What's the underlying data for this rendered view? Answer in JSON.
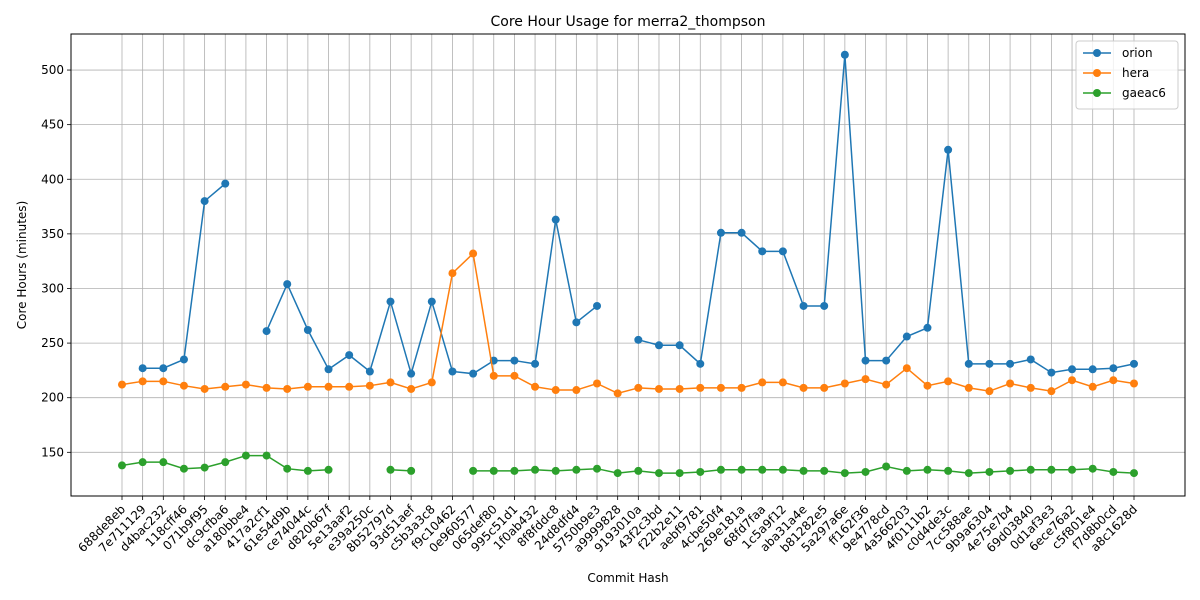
{
  "chart_data": {
    "type": "line",
    "title": "Core Hour Usage for merra2_thompson",
    "xlabel": "Commit Hash",
    "ylabel": "Core Hours (minutes)",
    "ylim": [
      110,
      533
    ],
    "yticks": [
      150,
      200,
      250,
      300,
      350,
      400,
      450,
      500
    ],
    "grid": true,
    "legend_position": "top-right",
    "categories": [
      "688de8eb",
      "7e711129",
      "d4bac232",
      "118cff46",
      "071b9f95",
      "dc9cfba6",
      "a180bbe4",
      "417a2cf1",
      "61e54d9b",
      "ce74044c",
      "d820b67f",
      "5e13aaf2",
      "e39a250c",
      "8b52797d",
      "93d51aef",
      "c5b3a3c8",
      "f9c10462",
      "0e960577",
      "065def80",
      "995c51d1",
      "1f0ab432",
      "8f8fddc8",
      "24d8dfd4",
      "5750b9e3",
      "a9999828",
      "9193010a",
      "43f2c3bd",
      "f22b2e11",
      "aebf9781",
      "4cbe50f4",
      "269e181a",
      "68fd7faa",
      "1c5a9f12",
      "aba31a4e",
      "b81282e5",
      "5a297a6e",
      "ff162f36",
      "9e4778cd",
      "4a566203",
      "4f0111b2",
      "c0d4de3c",
      "7cc588ae",
      "9b9a6304",
      "4e75e7b4",
      "69d03840",
      "0d1af3e3",
      "6ece76a2",
      "c5f801e4",
      "f7d8b0cd",
      "a8c1628d"
    ],
    "series": [
      {
        "name": "orion",
        "color": "#1f77b4",
        "values": [
          null,
          227,
          227,
          235,
          380,
          396,
          null,
          261,
          304,
          262,
          226,
          239,
          224,
          288,
          222,
          288,
          224,
          222,
          234,
          234,
          231,
          363,
          269,
          284,
          null,
          253,
          248,
          248,
          231,
          351,
          351,
          334,
          334,
          284,
          284,
          514,
          234,
          234,
          256,
          264,
          427,
          231,
          231,
          231,
          235,
          223,
          226,
          226,
          227,
          231
        ]
      },
      {
        "name": "hera",
        "color": "#ff7f0e",
        "values": [
          212,
          215,
          215,
          211,
          208,
          210,
          212,
          209,
          208,
          210,
          210,
          210,
          211,
          214,
          208,
          214,
          314,
          332,
          220,
          220,
          210,
          207,
          207,
          213,
          204,
          209,
          208,
          208,
          209,
          209,
          209,
          214,
          214,
          209,
          209,
          213,
          217,
          212,
          227,
          211,
          215,
          209,
          206,
          213,
          209,
          206,
          216,
          210,
          216,
          213
        ]
      },
      {
        "name": "gaeac6",
        "color": "#2ca02c",
        "values": [
          138,
          141,
          141,
          135,
          136,
          141,
          147,
          147,
          135,
          133,
          134,
          null,
          null,
          134,
          133,
          null,
          null,
          133,
          133,
          133,
          134,
          133,
          134,
          135,
          131,
          133,
          131,
          131,
          132,
          134,
          134,
          134,
          134,
          133,
          133,
          131,
          132,
          137,
          133,
          134,
          133,
          131,
          132,
          133,
          134,
          134,
          134,
          135,
          132,
          131
        ]
      }
    ]
  }
}
